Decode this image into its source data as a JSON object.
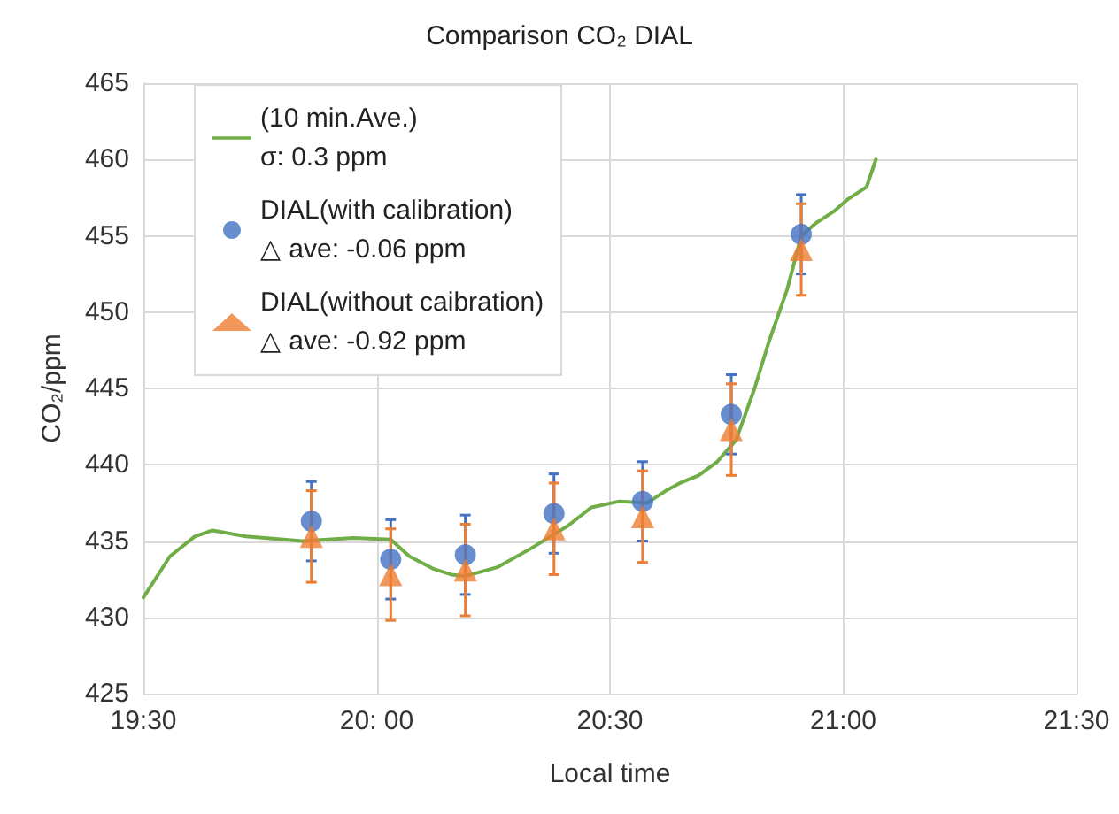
{
  "chart_data": {
    "type": "scatter",
    "title": "Comparison CO₂ DIAL",
    "xlabel": "Local time",
    "ylabel": "CO₂/ppm",
    "xlim": [
      19.5,
      21.5
    ],
    "xticks": [
      {
        "value": 19.5,
        "label": "19:30"
      },
      {
        "value": 20,
        "label": "20: 00"
      },
      {
        "value": 20.5,
        "label": "20:30"
      },
      {
        "value": 21,
        "label": "21:00"
      },
      {
        "value": 21.5,
        "label": "21:30"
      }
    ],
    "ylim": [
      425,
      465
    ],
    "yticks": [
      425,
      430,
      435,
      440,
      445,
      450,
      455,
      460,
      465
    ],
    "grid": true,
    "legend": "top left",
    "series": [
      {
        "name": "(10 min.Ave.)\nσ: 0.3 ppm",
        "type": "line",
        "marker": "none",
        "color": "#70ad47",
        "x": [
          19.5,
          19.557,
          19.61,
          19.648,
          19.72,
          19.84,
          19.95,
          20.03,
          20.07,
          20.12,
          20.16,
          20.19,
          20.26,
          20.33,
          20.41,
          20.46,
          20.52,
          20.58,
          20.62,
          20.65,
          20.69,
          20.73,
          20.77,
          20.81,
          20.84,
          20.88,
          20.91,
          20.94,
          20.98,
          21.01,
          21.05,
          21.07
        ],
        "values": [
          431.3,
          434.0,
          435.3,
          435.7,
          435.3,
          435.0,
          435.2,
          435.1,
          434.0,
          433.2,
          432.8,
          432.7,
          433.3,
          434.5,
          436.0,
          437.2,
          437.6,
          437.5,
          438.3,
          438.8,
          439.3,
          440.2,
          441.6,
          445.0,
          448.0,
          451.5,
          455.0,
          455.8,
          456.6,
          457.4,
          458.2,
          460.0
        ]
      },
      {
        "name": "DIAL(with calibration)\n△ ave: -0.06 ppm",
        "marker": "circle",
        "color": "#4472c4",
        "x": [
          19.86,
          20.03,
          20.19,
          20.38,
          20.57,
          20.76,
          20.91
        ],
        "values": [
          436.3,
          433.8,
          434.1,
          436.8,
          437.6,
          443.3,
          455.1
        ],
        "errors": [
          2.6,
          2.6,
          2.6,
          2.6,
          2.6,
          2.6,
          2.6
        ]
      },
      {
        "name": "DIAL(without caibration)\n△ ave: -0.92 ppm",
        "marker": "triangle",
        "color": "#ed7d31",
        "x": [
          19.86,
          20.03,
          20.19,
          20.38,
          20.57,
          20.76,
          20.91
        ],
        "values": [
          435.3,
          432.8,
          433.1,
          435.8,
          436.6,
          442.3,
          454.1
        ],
        "errors": [
          3.0,
          3.0,
          3.0,
          3.0,
          3.0,
          3.0,
          3.0
        ]
      }
    ]
  }
}
